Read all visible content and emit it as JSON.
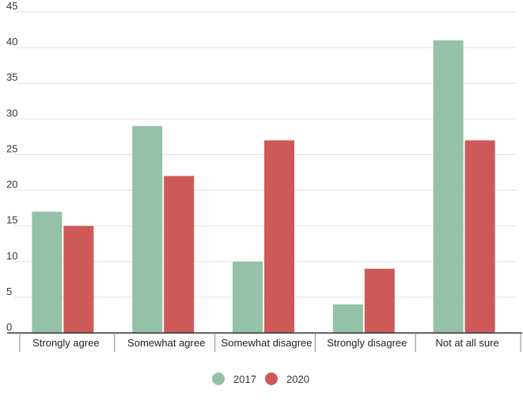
{
  "chart_data": {
    "type": "bar",
    "categories": [
      "Strongly agree",
      "Somewhat agree",
      "Somewhat disagree",
      "Strongly disagree",
      "Not at all sure"
    ],
    "series": [
      {
        "name": "2017",
        "color": "#95c1a7",
        "values": [
          17,
          29,
          10,
          4,
          41
        ]
      },
      {
        "name": "2020",
        "color": "#cd5a58",
        "values": [
          15,
          22,
          27,
          9,
          27
        ]
      }
    ],
    "ylim": [
      0,
      45
    ],
    "yticks": [
      0,
      5,
      10,
      15,
      20,
      25,
      30,
      35,
      40,
      45
    ],
    "grid": true,
    "legend": "bottom-center",
    "title": "",
    "xlabel": "",
    "ylabel": ""
  }
}
